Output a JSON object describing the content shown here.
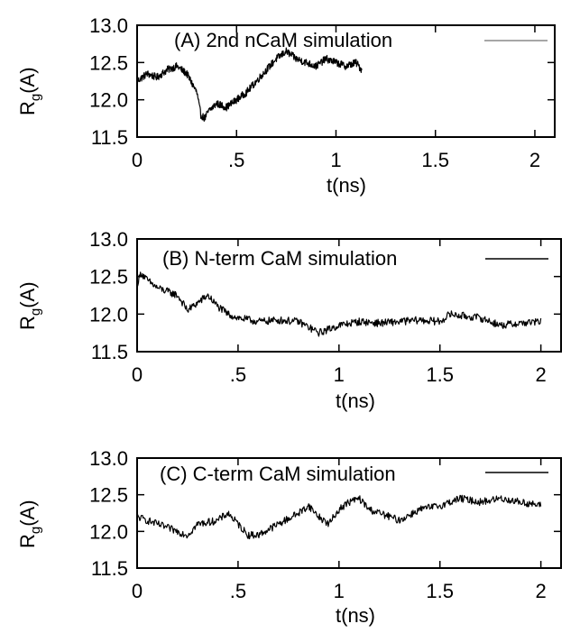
{
  "chart_data": [
    {
      "type": "line",
      "legend": "(A) 2nd nCaM  simulation",
      "xlabel": "t(ns)",
      "ylabel": {
        "main": "R",
        "sub": "g",
        "tail": "(A)"
      },
      "xlim": [
        0,
        2.1
      ],
      "ylim": [
        11.5,
        13.0
      ],
      "xticks": [
        0,
        0.5,
        1,
        1.5,
        2
      ],
      "xtick_labels": [
        "0",
        ".5",
        "1",
        "1.5",
        "2"
      ],
      "yticks": [
        11.5,
        12.0,
        12.5,
        13.0
      ],
      "ytick_labels": [
        "11.5",
        "12.0",
        "12.5",
        "13.0"
      ],
      "legend_position": "top-right",
      "x": [
        0,
        0.05,
        0.1,
        0.15,
        0.2,
        0.25,
        0.28,
        0.3,
        0.32,
        0.34,
        0.36,
        0.4,
        0.45,
        0.5,
        0.55,
        0.6,
        0.65,
        0.7,
        0.75,
        0.8,
        0.85,
        0.9,
        0.95,
        1.0,
        1.05,
        1.1,
        1.13
      ],
      "y": [
        12.25,
        12.35,
        12.3,
        12.4,
        12.45,
        12.35,
        12.2,
        12.1,
        11.8,
        11.75,
        11.85,
        11.95,
        11.9,
        12.0,
        12.1,
        12.25,
        12.4,
        12.55,
        12.65,
        12.55,
        12.5,
        12.45,
        12.55,
        12.5,
        12.45,
        12.5,
        12.4
      ],
      "noise": 0.05
    },
    {
      "type": "line",
      "legend": "(B) N-term CaM simulation",
      "xlabel": "t(ns)",
      "ylabel": {
        "main": "R",
        "sub": "g",
        "tail": "(A)"
      },
      "xlim": [
        0,
        2.1
      ],
      "ylim": [
        11.5,
        13.0
      ],
      "xticks": [
        0,
        0.5,
        1,
        1.5,
        2
      ],
      "xtick_labels": [
        "0",
        ".5",
        "1",
        "1.5",
        "2"
      ],
      "yticks": [
        11.5,
        12.0,
        12.5,
        13.0
      ],
      "ytick_labels": [
        "11.5",
        "12.0",
        "12.5",
        "13.0"
      ],
      "legend_position": "top-right",
      "x": [
        0,
        0.02,
        0.05,
        0.1,
        0.15,
        0.2,
        0.25,
        0.3,
        0.35,
        0.4,
        0.45,
        0.5,
        0.6,
        0.7,
        0.8,
        0.9,
        0.95,
        1.0,
        1.1,
        1.2,
        1.3,
        1.4,
        1.5,
        1.55,
        1.6,
        1.7,
        1.8,
        1.9,
        2.0
      ],
      "y": [
        12.4,
        12.55,
        12.45,
        12.35,
        12.3,
        12.25,
        12.05,
        12.15,
        12.25,
        12.1,
        12.0,
        11.95,
        11.9,
        11.92,
        11.9,
        11.75,
        11.8,
        11.85,
        11.9,
        11.88,
        11.9,
        11.92,
        11.9,
        12.0,
        11.98,
        11.95,
        11.85,
        11.88,
        11.9
      ],
      "noise": 0.05
    },
    {
      "type": "line",
      "legend": "(C) C-term CaM simulation",
      "xlabel": "t(ns)",
      "ylabel": {
        "main": "R",
        "sub": "g",
        "tail": "(A)"
      },
      "xlim": [
        0,
        2.1
      ],
      "ylim": [
        11.5,
        13.0
      ],
      "xticks": [
        0,
        0.5,
        1,
        1.5,
        2
      ],
      "xtick_labels": [
        "0",
        ".5",
        "1",
        "1.5",
        "2"
      ],
      "yticks": [
        11.5,
        12.0,
        12.5,
        13.0
      ],
      "ytick_labels": [
        "11.5",
        "12.0",
        "12.5",
        "13.0"
      ],
      "legend_position": "top-right",
      "x": [
        0,
        0.05,
        0.1,
        0.15,
        0.2,
        0.25,
        0.3,
        0.4,
        0.45,
        0.5,
        0.55,
        0.6,
        0.7,
        0.8,
        0.85,
        0.9,
        0.95,
        1.0,
        1.05,
        1.1,
        1.15,
        1.2,
        1.3,
        1.4,
        1.5,
        1.6,
        1.7,
        1.8,
        1.9,
        2.0
      ],
      "y": [
        12.2,
        12.15,
        12.1,
        12.05,
        12.0,
        11.95,
        12.1,
        12.15,
        12.25,
        12.1,
        11.95,
        11.95,
        12.1,
        12.25,
        12.35,
        12.2,
        12.1,
        12.3,
        12.4,
        12.45,
        12.3,
        12.25,
        12.15,
        12.3,
        12.35,
        12.45,
        12.4,
        12.45,
        12.4,
        12.35
      ],
      "noise": 0.05
    }
  ]
}
